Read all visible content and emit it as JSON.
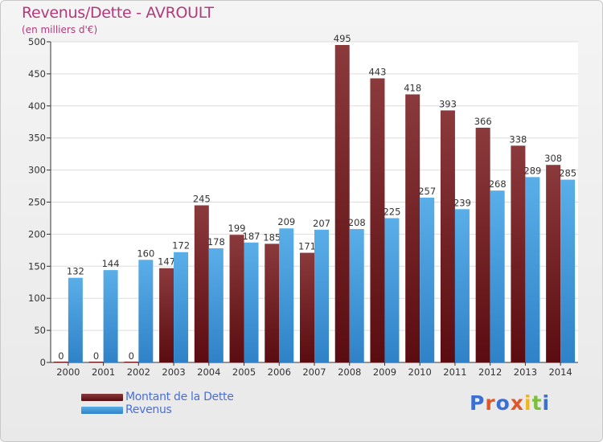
{
  "header": {
    "title": "Revenus/Dette - AVROULT",
    "subtitle": "(en milliers d'€)"
  },
  "chart_data": {
    "type": "bar",
    "categories": [
      "2000",
      "2001",
      "2002",
      "2003",
      "2004",
      "2005",
      "2006",
      "2007",
      "2008",
      "2009",
      "2010",
      "2011",
      "2012",
      "2013",
      "2014"
    ],
    "series": [
      {
        "name": "Montant de la Dette",
        "color": "#7a1e24",
        "values": [
          0,
          0,
          0,
          147,
          245,
          199,
          185,
          171,
          495,
          443,
          418,
          393,
          366,
          338,
          308
        ]
      },
      {
        "name": "Revenus",
        "color": "#3e9be0",
        "values": [
          132,
          144,
          160,
          172,
          178,
          187,
          209,
          207,
          208,
          225,
          257,
          239,
          268,
          289,
          285
        ]
      }
    ],
    "ylim": [
      0,
      500
    ],
    "yticks": [
      0,
      50,
      100,
      150,
      200,
      250,
      300,
      350,
      400,
      450,
      500
    ],
    "grid": true,
    "legend": "bottom-left",
    "show_data_labels": true
  },
  "logo": {
    "text": "Proxiti"
  }
}
